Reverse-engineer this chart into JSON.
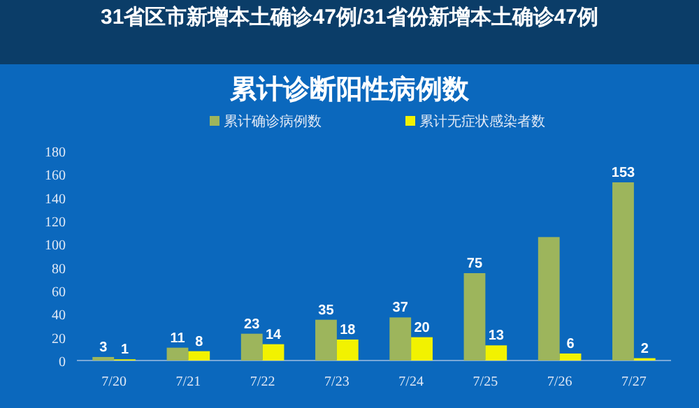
{
  "chart_data": {
    "type": "bar",
    "title": "累计诊断阳性病例数",
    "annotations": [
      "31省区市新增本土确诊47例/31省份新增本土确诊47例"
    ],
    "categories": [
      "7/20",
      "7/21",
      "7/22",
      "7/23",
      "7/24",
      "7/25",
      "7/26",
      "7/27"
    ],
    "series": [
      {
        "name": "累计确诊病例数",
        "color": "#9db55c",
        "values": [
          3,
          11,
          23,
          35,
          37,
          75,
          106,
          153
        ],
        "value_labels": [
          "3",
          "11",
          "23",
          "35",
          "37",
          "75",
          null,
          "153"
        ]
      },
      {
        "name": "累计无症状感染者数",
        "color": "#f2f200",
        "values": [
          1,
          8,
          14,
          18,
          20,
          13,
          6,
          2
        ],
        "value_labels": [
          "1",
          "8",
          "14",
          "18",
          "20",
          "13",
          "6",
          "2"
        ]
      }
    ],
    "ylim": [
      0,
      180
    ],
    "yticks": [
      0,
      20,
      40,
      60,
      80,
      100,
      120,
      140,
      160,
      180
    ],
    "legend": "top",
    "grid": false
  }
}
